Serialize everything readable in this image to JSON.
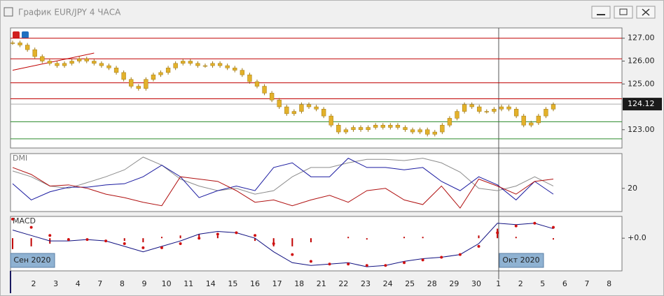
{
  "window": {
    "title": "График EUR/JPY  4 ЧАСА"
  },
  "x_axis": {
    "categories": [
      "2",
      "3",
      "4",
      "7",
      "8",
      "9",
      "10",
      "11",
      "14",
      "15",
      "16",
      "17",
      "18",
      "21",
      "22",
      "23",
      "24",
      "25",
      "28",
      "29",
      "30",
      "1",
      "2",
      "5",
      "6",
      "7",
      "8"
    ],
    "periods": [
      "Сен 2020",
      "Окт 2020"
    ]
  },
  "chart_data": [
    {
      "type": "candlestick",
      "color": "#e3b12a",
      "values": [
        126.8,
        126.7,
        126.5,
        126.2,
        126.0,
        125.9,
        125.8,
        125.9,
        126.0,
        126.1,
        126.0,
        125.9,
        125.8,
        125.7,
        125.5,
        125.2,
        124.9,
        124.8,
        125.2,
        125.4,
        125.5,
        125.7,
        125.9,
        126.0,
        125.9,
        125.8,
        125.8,
        125.9,
        125.8,
        125.7,
        125.6,
        125.4,
        125.1,
        124.9,
        124.6,
        124.3,
        124.0,
        123.7,
        123.8,
        124.1,
        124.0,
        123.9,
        123.6,
        123.2,
        122.9,
        123.0,
        123.1,
        123.0,
        123.1,
        123.2,
        123.1,
        123.2,
        123.1,
        123.0,
        122.9,
        123.0,
        122.8,
        122.9,
        123.2,
        123.5,
        123.8,
        124.1,
        124.0,
        123.8,
        123.8,
        123.9,
        124.0,
        123.9,
        123.6,
        123.2,
        123.3,
        123.6,
        123.9,
        124.1
      ],
      "ylim": [
        122.2,
        127.45
      ],
      "yticks": [
        {
          "value": 127,
          "label": "127.00"
        },
        {
          "value": 126,
          "label": "126.00"
        },
        {
          "value": 125,
          "label": "125.00"
        },
        {
          "value": 123,
          "label": "123.00"
        }
      ],
      "last_price": 124.12,
      "levels": [
        {
          "value": 127.0,
          "color": "#c00000"
        },
        {
          "value": 126.1,
          "color": "#c00000"
        },
        {
          "value": 125.05,
          "color": "#c00000"
        },
        {
          "value": 124.35,
          "color": "#c00000"
        },
        {
          "value": 123.35,
          "color": "#2a8a2a"
        },
        {
          "value": 122.6,
          "color": "#2a8a2a"
        }
      ],
      "trendline": {
        "color": "#c00000",
        "from": [
          0,
          125.6
        ],
        "to": [
          11,
          126.35
        ]
      }
    },
    {
      "type": "line",
      "title": "DMI",
      "ylim": [
        0,
        50
      ],
      "yticks": [
        20
      ],
      "series": [
        {
          "color": "#8c8c8c",
          "values": [
            35,
            30,
            22,
            20,
            25,
            30,
            36,
            47,
            40,
            28,
            22,
            18,
            20,
            15,
            18,
            30,
            38,
            38,
            42,
            45,
            45,
            44,
            46,
            42,
            34,
            20,
            18,
            22,
            30,
            22
          ]
        },
        {
          "color": "#1a1aa0",
          "values": [
            24,
            10,
            17,
            21,
            21,
            23,
            24,
            30,
            40,
            30,
            12,
            18,
            22,
            18,
            38,
            42,
            30,
            30,
            46,
            38,
            38,
            36,
            38,
            26,
            18,
            30,
            23,
            10,
            26,
            15
          ]
        },
        {
          "color": "#b01010",
          "values": [
            38,
            32,
            22,
            23,
            20,
            15,
            12,
            8,
            5,
            30,
            28,
            26,
            18,
            8,
            10,
            5,
            10,
            14,
            8,
            18,
            20,
            10,
            6,
            22,
            3,
            28,
            22,
            15,
            26,
            28
          ]
        }
      ]
    },
    {
      "type": "macd",
      "title": "MACD",
      "ylim": [
        -1.2,
        0.8
      ],
      "yticks": [
        {
          "value": 0,
          "label": "+0.0"
        }
      ],
      "histogram": {
        "color": "#c00000",
        "values": [
          -0.4,
          -0.3,
          -0.2,
          -0.05,
          0,
          0,
          -0.1,
          -0.15,
          0.05,
          0.1,
          0.15,
          0.1,
          0,
          -0.1,
          -0.3,
          -0.3,
          -0.15,
          0,
          0.05,
          -0.05,
          0,
          0.05,
          0.05,
          0,
          0,
          0.1,
          0.35,
          0.05,
          0,
          -0.05
        ]
      },
      "series": [
        {
          "style": "line",
          "color": "#101080",
          "values": [
            0.3,
            0.1,
            -0.1,
            -0.1,
            -0.05,
            -0.1,
            -0.3,
            -0.5,
            -0.3,
            -0.1,
            0.15,
            0.25,
            0.2,
            0.0,
            -0.5,
            -0.9,
            -1.0,
            -0.95,
            -0.9,
            -1.05,
            -1.0,
            -0.85,
            -0.75,
            -0.7,
            -0.6,
            -0.2,
            0.55,
            0.5,
            0.55,
            0.35
          ]
        },
        {
          "style": "dots",
          "color": "#d01010",
          "values": [
            0.7,
            0.4,
            0.1,
            -0.05,
            -0.05,
            -0.1,
            -0.2,
            -0.35,
            -0.35,
            -0.2,
            0.0,
            0.15,
            0.2,
            0.1,
            -0.2,
            -0.6,
            -0.85,
            -0.95,
            -0.95,
            -1.0,
            -1.0,
            -0.9,
            -0.8,
            -0.7,
            -0.6,
            -0.3,
            0.2,
            0.45,
            0.55,
            0.4
          ]
        }
      ]
    }
  ]
}
